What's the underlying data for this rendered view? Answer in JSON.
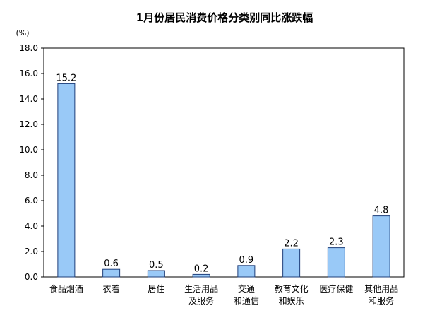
{
  "chart_data": {
    "type": "bar",
    "title": "1月份居民消费价格分类别同比涨跌幅",
    "unit": "(%)",
    "categories": [
      [
        "食品烟酒"
      ],
      [
        "衣着"
      ],
      [
        "居住"
      ],
      [
        "生活用品",
        "及服务"
      ],
      [
        "交通",
        "和通信"
      ],
      [
        "教育文化",
        "和娱乐"
      ],
      [
        "医疗保健"
      ],
      [
        "其他用品",
        "和服务"
      ]
    ],
    "values": [
      15.2,
      0.6,
      0.5,
      0.2,
      0.9,
      2.2,
      2.3,
      4.8
    ],
    "value_labels": [
      "15.2",
      "0.6",
      "0.5",
      "0.2",
      "0.9",
      "2.2",
      "2.3",
      "4.8"
    ],
    "ylim": [
      0,
      18
    ],
    "yticks": [
      "0.0",
      "2.0",
      "4.0",
      "6.0",
      "8.0",
      "10.0",
      "12.0",
      "14.0",
      "16.0",
      "18.0"
    ],
    "grid": false,
    "bar_color": "#99c9f7",
    "bar_edge_color": "#1f3f7a"
  }
}
